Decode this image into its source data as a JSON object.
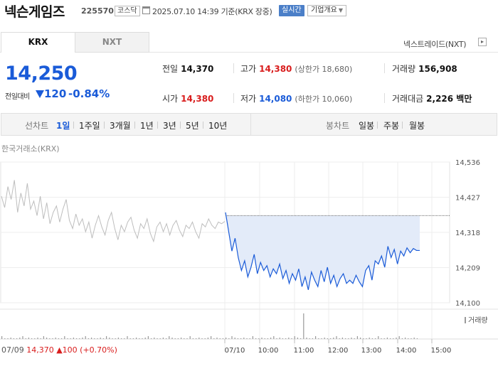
{
  "header": {
    "name": "넥슨게임즈",
    "code": "225570",
    "market": "코스닥",
    "datetime": "2025.07.10 14:39 기준(KRX 장중)",
    "realtime": "실시간",
    "company_info": "기업개요"
  },
  "exchange_tabs": [
    "KRX",
    "NXT"
  ],
  "nxt_trade": "넥스트레이드(NXT)",
  "price": {
    "current": "14,250",
    "change_label": "전일대비",
    "change_amount": "120",
    "change_pct": "-0.84%"
  },
  "stats": {
    "prev_close": {
      "label": "전일",
      "value": "14,370"
    },
    "high": {
      "label": "고가",
      "value": "14,380",
      "sub": "(상한가 18,680)"
    },
    "volume": {
      "label": "거래량",
      "value": "156,908"
    },
    "open": {
      "label": "시가",
      "value": "14,380"
    },
    "low": {
      "label": "저가",
      "value": "14,080",
      "sub": "(하한가 10,060)"
    },
    "turnover": {
      "label": "거래대금",
      "value": "2,226 백만"
    }
  },
  "chart_tabs": {
    "line_label": "선차트",
    "line": [
      "1일",
      "1주일",
      "3개월",
      "1년",
      "3년",
      "5년",
      "10년"
    ],
    "candle_label": "봉차트",
    "candle": [
      "일봉",
      "주봉",
      "월봉"
    ]
  },
  "chart_source": "한국거래소(KRX)",
  "volume_label": "거래량",
  "bottom": {
    "date": "07/09",
    "price": "14,370",
    "change": "100",
    "pct": "(+0.70%)"
  },
  "colors": {
    "accent": "#1a5bd8",
    "up": "#d91d1d",
    "fill": "#e3ebf9"
  },
  "chart_data": {
    "type": "line",
    "y_ticks": [
      "14,536",
      "14,427",
      "14,318",
      "14,209",
      "14,100"
    ],
    "y_values": [
      14536,
      14427,
      14318,
      14209,
      14100
    ],
    "ylim": [
      14100,
      14536
    ],
    "x_ticks": [
      "07/10",
      "10:00",
      "11:00",
      "12:00",
      "13:00",
      "14:00",
      "15:00"
    ],
    "prev_close": 14370,
    "prev_day_series": [
      14430,
      14395,
      14460,
      14420,
      14480,
      14380,
      14440,
      14400,
      14470,
      14390,
      14415,
      14370,
      14430,
      14360,
      14410,
      14345,
      14380,
      14400,
      14350,
      14390,
      14420,
      14355,
      14330,
      14375,
      14340,
      14360,
      14320,
      14350,
      14300,
      14340,
      14370,
      14335,
      14310,
      14355,
      14380,
      14330,
      14295,
      14340,
      14320,
      14350,
      14365,
      14325,
      14300,
      14345,
      14330,
      14360,
      14315,
      14290,
      14335,
      14350,
      14320,
      14345,
      14310,
      14340,
      14355,
      14325,
      14305,
      14340,
      14330,
      14350,
      14320,
      14300,
      14345,
      14335,
      14360,
      14340,
      14330,
      14350,
      14345,
      14352
    ],
    "today_series": [
      14380,
      14320,
      14260,
      14300,
      14240,
      14200,
      14230,
      14180,
      14210,
      14250,
      14190,
      14225,
      14200,
      14215,
      14180,
      14205,
      14190,
      14220,
      14175,
      14200,
      14160,
      14190,
      14170,
      14205,
      14150,
      14180,
      14140,
      14195,
      14170,
      14150,
      14200,
      14165,
      14210,
      14160,
      14185,
      14150,
      14175,
      14190,
      14160,
      14170,
      14160,
      14185,
      14165,
      14150,
      14200,
      14215,
      14170,
      14230,
      14220,
      14245,
      14210,
      14275,
      14240,
      14265,
      14220,
      14260,
      14245,
      14270,
      14255,
      14268,
      14262,
      14262
    ]
  }
}
